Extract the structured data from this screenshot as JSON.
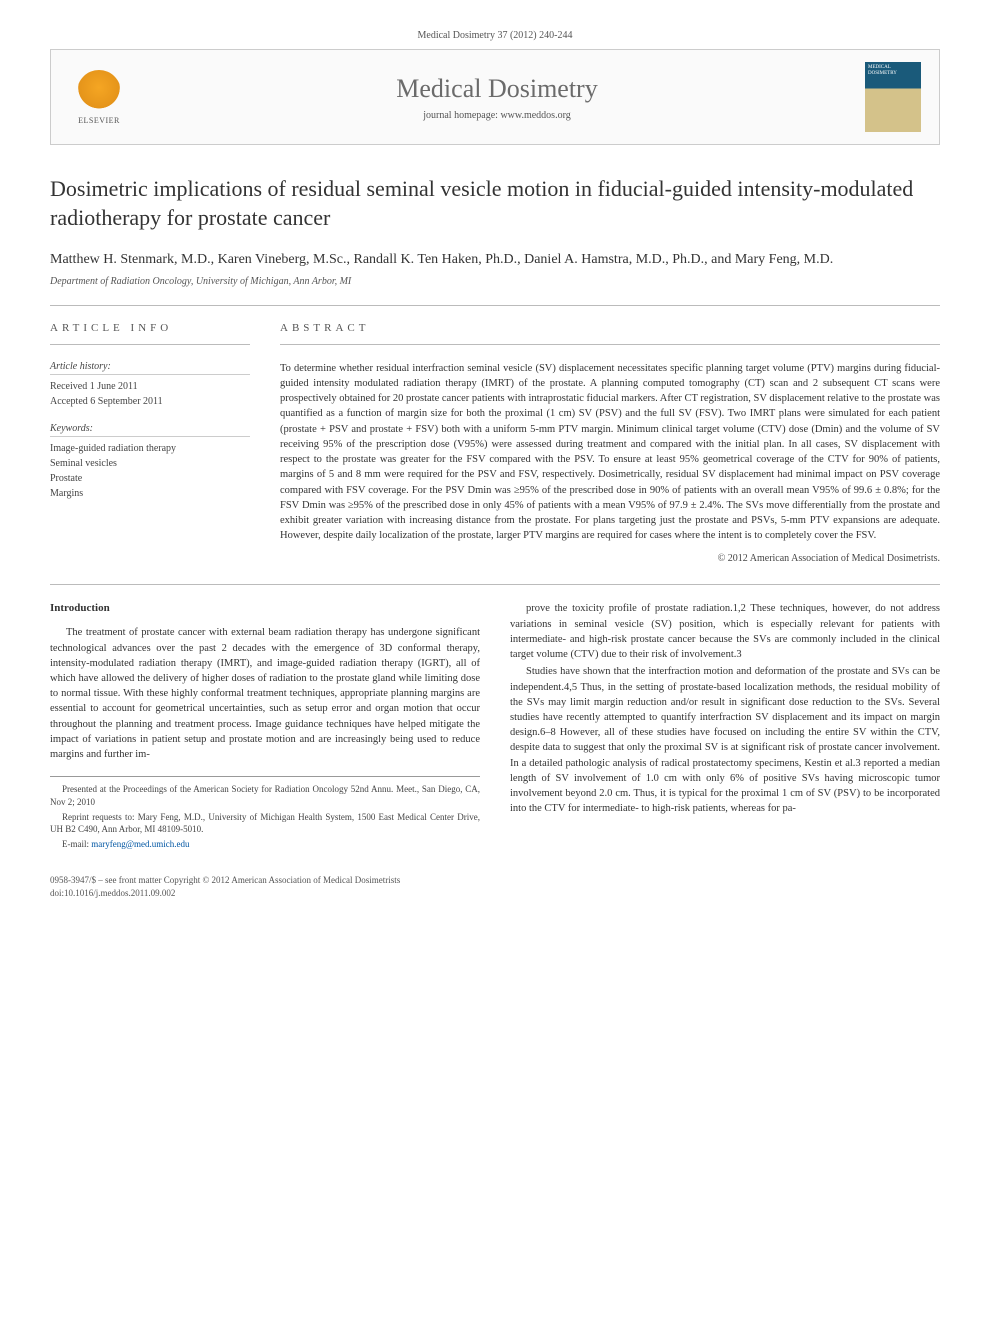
{
  "header": {
    "citation": "Medical Dosimetry 37 (2012) 240-244"
  },
  "banner": {
    "publisher": "ELSEVIER",
    "journal_title": "Medical Dosimetry",
    "homepage_label": "journal homepage: www.meddos.org",
    "cover_label": "MEDICAL DOSIMETRY"
  },
  "article": {
    "title": "Dosimetric implications of residual seminal vesicle motion in fiducial-guided intensity-modulated radiotherapy for prostate cancer",
    "authors": "Matthew H. Stenmark, M.D., Karen Vineberg, M.Sc., Randall K. Ten Haken, Ph.D., Daniel A. Hamstra, M.D., Ph.D., and Mary Feng, M.D.",
    "affiliation": "Department of Radiation Oncology, University of Michigan, Ann Arbor, MI"
  },
  "info": {
    "heading": "ARTICLE INFO",
    "history_label": "Article history:",
    "received": "Received 1 June 2011",
    "accepted": "Accepted 6 September 2011",
    "keywords_label": "Keywords:",
    "keywords": [
      "Image-guided radiation therapy",
      "Seminal vesicles",
      "Prostate",
      "Margins"
    ]
  },
  "abstract": {
    "heading": "ABSTRACT",
    "text": "To determine whether residual interfraction seminal vesicle (SV) displacement necessitates specific planning target volume (PTV) margins during fiducial-guided intensity modulated radiation therapy (IMRT) of the prostate. A planning computed tomography (CT) scan and 2 subsequent CT scans were prospectively obtained for 20 prostate cancer patients with intraprostatic fiducial markers. After CT registration, SV displacement relative to the prostate was quantified as a function of margin size for both the proximal (1 cm) SV (PSV) and the full SV (FSV). Two IMRT plans were simulated for each patient (prostate + PSV and prostate + FSV) both with a uniform 5-mm PTV margin. Minimum clinical target volume (CTV) dose (Dmin) and the volume of SV receiving 95% of the prescription dose (V95%) were assessed during treatment and compared with the initial plan. In all cases, SV displacement with respect to the prostate was greater for the FSV compared with the PSV. To ensure at least 95% geometrical coverage of the CTV for 90% of patients, margins of 5 and 8 mm were required for the PSV and FSV, respectively. Dosimetrically, residual SV displacement had minimal impact on PSV coverage compared with FSV coverage. For the PSV Dmin was ≥95% of the prescribed dose in 90% of patients with an overall mean V95% of 99.6 ± 0.8%; for the FSV Dmin was ≥95% of the prescribed dose in only 45% of patients with a mean V95% of 97.9 ± 2.4%. The SVs move differentially from the prostate and exhibit greater variation with increasing distance from the prostate. For plans targeting just the prostate and PSVs, 5-mm PTV expansions are adequate. However, despite daily localization of the prostate, larger PTV margins are required for cases where the intent is to completely cover the FSV.",
    "copyright": "© 2012 American Association of Medical Dosimetrists."
  },
  "body": {
    "intro_heading": "Introduction",
    "p1": "The treatment of prostate cancer with external beam radiation therapy has undergone significant technological advances over the past 2 decades with the emergence of 3D conformal therapy, intensity-modulated radiation therapy (IMRT), and image-guided radiation therapy (IGRT), all of which have allowed the delivery of higher doses of radiation to the prostate gland while limiting dose to normal tissue. With these highly conformal treatment techniques, appropriate planning margins are essential to account for geometrical uncertainties, such as setup error and organ motion that occur throughout the planning and treatment process. Image guidance techniques have helped mitigate the impact of variations in patient setup and prostate motion and are increasingly being used to reduce margins and further im-",
    "p2": "prove the toxicity profile of prostate radiation.1,2 These techniques, however, do not address variations in seminal vesicle (SV) position, which is especially relevant for patients with intermediate- and high-risk prostate cancer because the SVs are commonly included in the clinical target volume (CTV) due to their risk of involvement.3",
    "p3": "Studies have shown that the interfraction motion and deformation of the prostate and SVs can be independent.4,5 Thus, in the setting of prostate-based localization methods, the residual mobility of the SVs may limit margin reduction and/or result in significant dose reduction to the SVs. Several studies have recently attempted to quantify interfraction SV displacement and its impact on margin design.6–8 However, all of these studies have focused on including the entire SV within the CTV, despite data to suggest that only the proximal SV is at significant risk of prostate cancer involvement. In a detailed pathologic analysis of radical prostatectomy specimens, Kestin et al.3 reported a median length of SV involvement of 1.0 cm with only 6% of positive SVs having microscopic tumor involvement beyond 2.0 cm. Thus, it is typical for the proximal 1 cm of SV (PSV) to be incorporated into the CTV for intermediate- to high-risk patients, whereas for pa-"
  },
  "footnotes": {
    "presented": "Presented at the Proceedings of the American Society for Radiation Oncology 52nd Annu. Meet., San Diego, CA, Nov 2; 2010",
    "reprint": "Reprint requests to: Mary Feng, M.D., University of Michigan Health System, 1500 East Medical Center Drive, UH B2 C490, Ann Arbor, MI 48109-5010.",
    "email_label": "E-mail:",
    "email": "maryfeng@med.umich.edu"
  },
  "footer": {
    "line1": "0958-3947/$ – see front matter Copyright © 2012 American Association of Medical Dosimetrists",
    "line2": "doi:10.1016/j.meddos.2011.09.002"
  }
}
